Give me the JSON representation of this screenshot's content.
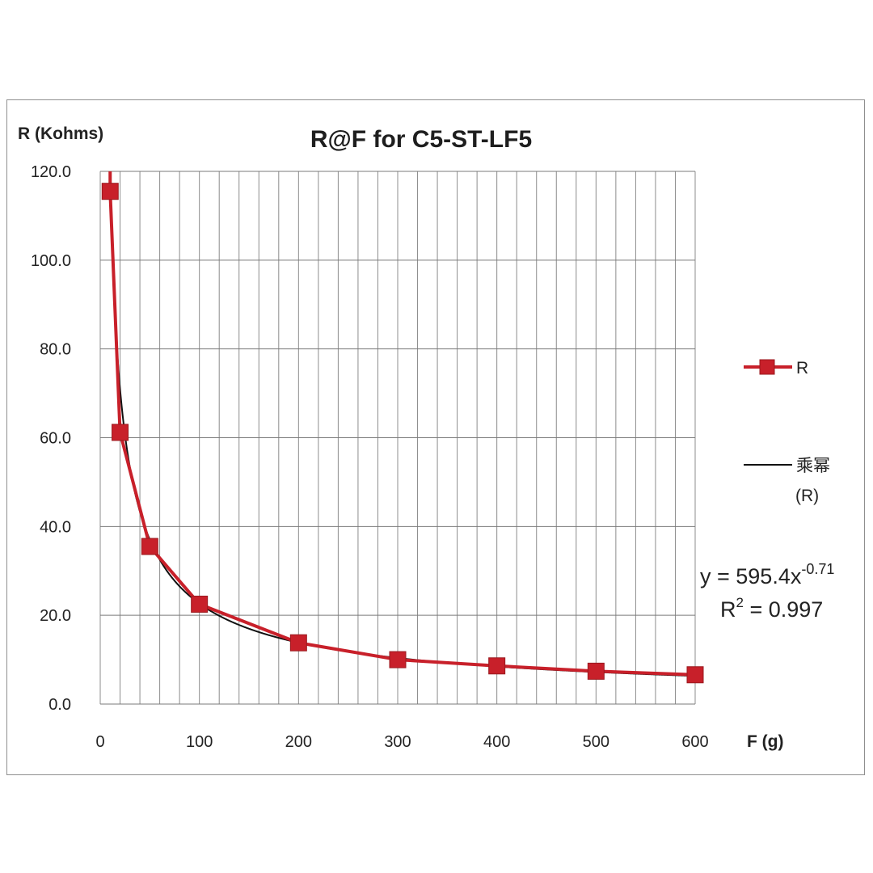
{
  "chart_data": {
    "type": "line",
    "title": "R@F for C5-ST-LF5",
    "ylabel": "R (Kohms)",
    "xlabel": "F (g)",
    "xlim": [
      0,
      600
    ],
    "ylim": [
      0,
      120
    ],
    "x_ticks": [
      "0",
      "100",
      "200",
      "300",
      "400",
      "500",
      "600"
    ],
    "y_ticks": [
      "0.0",
      "20.0",
      "40.0",
      "60.0",
      "80.0",
      "100.0",
      "120.0"
    ],
    "grid": true,
    "legend_position": "right",
    "series": [
      {
        "name": "R",
        "color": "#c8202a",
        "marker": "square",
        "x": [
          10,
          20,
          50,
          100,
          200,
          300,
          400,
          500,
          600
        ],
        "y": [
          115.5,
          61.2,
          35.5,
          22.5,
          13.8,
          10.0,
          8.6,
          7.4,
          6.6
        ]
      }
    ],
    "trendline": {
      "name": "乘幂",
      "name_sub": "(R)",
      "type": "power",
      "coefficient": 595.4,
      "exponent": -0.71,
      "color": "#111111",
      "equation_prefix": "y = 595.4x",
      "equation_exponent": "-0.71",
      "r2_prefix": "R",
      "r2_power": "2",
      "r2_suffix": " = 0.997"
    }
  }
}
